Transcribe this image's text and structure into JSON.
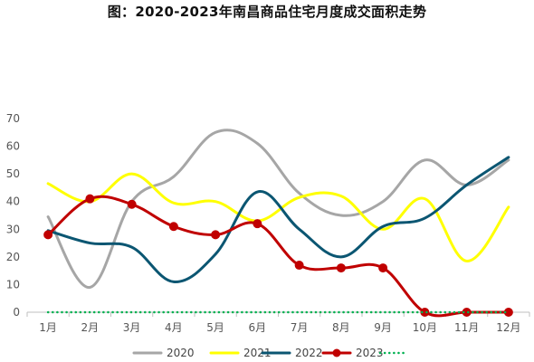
{
  "chart_data": {
    "type": "line",
    "title": "图：2020-2023年南昌商品住宅月度成交面积走势",
    "categories": [
      "1月",
      "2月",
      "3月",
      "4月",
      "5月",
      "6月",
      "7月",
      "8月",
      "9月",
      "10月",
      "11月",
      "12月"
    ],
    "ylim": [
      0,
      70
    ],
    "yticks": [
      0,
      10,
      20,
      30,
      40,
      50,
      60,
      70
    ],
    "grid": false,
    "legend": "bottom",
    "series": [
      {
        "name": "2020",
        "color": "#A6A6A6",
        "markers": false,
        "values": [
          34.5,
          9,
          40,
          49,
          65,
          61,
          43,
          35,
          40,
          55,
          46,
          55
        ]
      },
      {
        "name": "2021",
        "color": "#FFFF00",
        "markers": false,
        "values": [
          46.5,
          40,
          50,
          39.5,
          40,
          33,
          41.5,
          42,
          30,
          41,
          18.5,
          38
        ]
      },
      {
        "name": "2022",
        "color": "#0B5672",
        "markers": false,
        "values": [
          29.5,
          25,
          23.5,
          11,
          21,
          43.5,
          30,
          20,
          31,
          34,
          46,
          56
        ]
      },
      {
        "name": "2023",
        "color": "#C00000",
        "markers": true,
        "values": [
          28,
          41,
          39,
          31,
          28,
          32,
          17,
          16,
          16,
          0,
          0,
          0
        ]
      },
      {
        "name": "",
        "color": "#00B050",
        "markers": false,
        "dotted": true,
        "values": [
          0,
          0,
          0,
          0,
          0,
          0,
          0,
          0,
          0,
          0,
          0,
          0
        ]
      }
    ]
  }
}
